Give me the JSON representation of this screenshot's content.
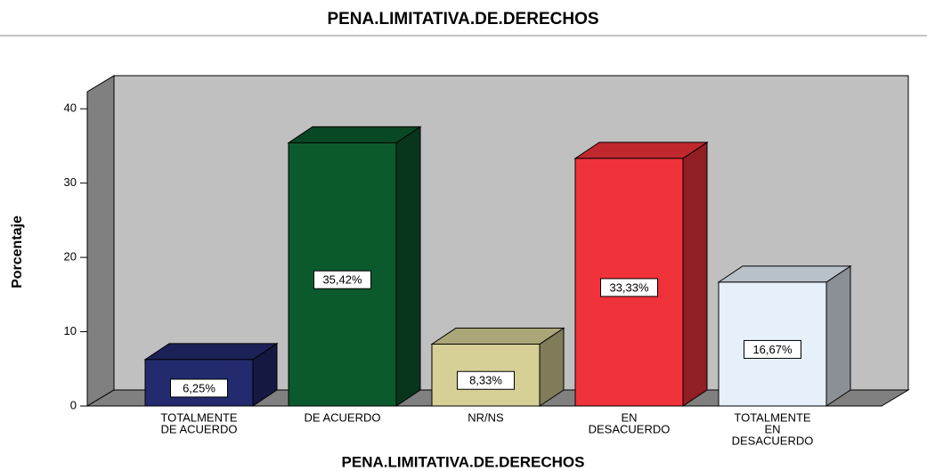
{
  "chart_data": {
    "type": "bar3d",
    "title": "PENA.LIMITATIVA.DE.DERECHOS",
    "x_label": "PENA.LIMITATIVA.DE.DERECHOS",
    "y_label": "Porcentaje",
    "categories": [
      [
        "TOTALMENTE",
        "DE ACUERDO"
      ],
      [
        "DE ACUERDO"
      ],
      [
        "NR/NS"
      ],
      [
        "EN",
        "DESACUERDO"
      ],
      [
        "TOTALMENTE",
        "EN",
        "DESACUERDO"
      ]
    ],
    "values": [
      6.25,
      35.42,
      8.33,
      33.33,
      16.67
    ],
    "value_labels": [
      "6,25%",
      "35,42%",
      "8,33%",
      "33,33%",
      "16,67%"
    ],
    "colors": [
      "#232a6e",
      "#0b5a2e",
      "#d6cf96",
      "#f0323a",
      "#e6f0fa"
    ],
    "ylim": [
      0,
      42.3
    ],
    "yticks": [
      0,
      10,
      20,
      30,
      40
    ]
  }
}
